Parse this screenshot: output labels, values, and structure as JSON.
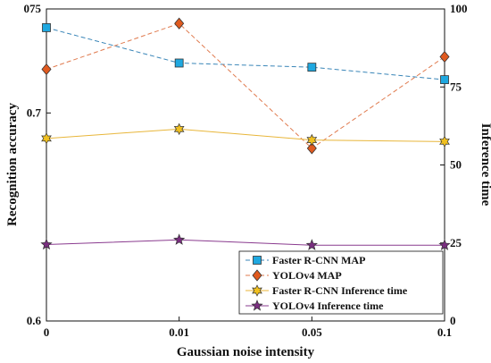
{
  "chart_data": {
    "type": "line",
    "xlabel": "Gaussian noise intensity",
    "ylabel_left": "Recognition accuracy",
    "ylabel_right": "Inference time",
    "categories": [
      "0",
      "0.01",
      "0.05",
      "0.1"
    ],
    "y_left_lim": [
      0.6,
      0.75
    ],
    "y_left_ticks": [
      "0.6",
      "0.7",
      "075"
    ],
    "y_left_tick_values": [
      0.6,
      0.7,
      0.75
    ],
    "y_right_lim": [
      0,
      100
    ],
    "y_right_ticks": [
      "0",
      "25",
      "50",
      "75",
      "100"
    ],
    "y_right_tick_values": [
      0,
      25,
      50,
      75,
      100
    ],
    "grid": false,
    "legend_position": "bottom-right",
    "series": [
      {
        "name": "Faster R-CNN MAP",
        "axis": "left",
        "values": [
          0.741,
          0.724,
          0.722,
          0.716
        ],
        "color": "#3a86b8",
        "marker": "square",
        "marker_fill": "#1fa8e0",
        "dash": "dashed"
      },
      {
        "name": "YOLOv4 MAP",
        "axis": "left",
        "values": [
          0.721,
          0.743,
          0.683,
          0.727
        ],
        "color": "#e07b4f",
        "marker": "diamond",
        "marker_fill": "#e05a1f",
        "dash": "dashed"
      },
      {
        "name": "Faster R-CNN Inference time",
        "axis": "right",
        "values": [
          58.5,
          61.5,
          58,
          57.5
        ],
        "color": "#e8b63a",
        "marker": "hexagram",
        "marker_fill": "#f0c020",
        "dash": "solid"
      },
      {
        "name": "YOLOv4 Inference time",
        "axis": "right",
        "values": [
          24.5,
          26,
          24.3,
          24.3
        ],
        "color": "#8a3b8f",
        "marker": "pentagram",
        "marker_fill": "#7a2e80",
        "dash": "solid"
      }
    ]
  }
}
